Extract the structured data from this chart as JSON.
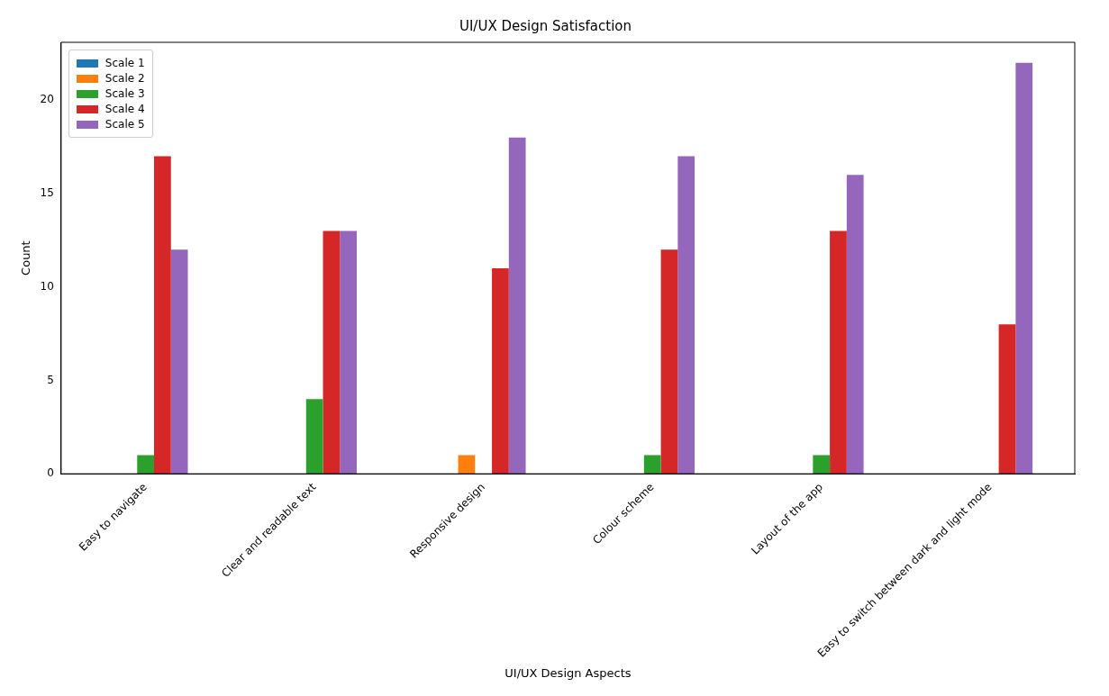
{
  "chart_data": {
    "type": "bar",
    "title": "UI/UX Design Satisfaction",
    "xlabel": "UI/UX Design Aspects",
    "ylabel": "Count",
    "categories": [
      "Easy to navigate",
      "Clear and readable text",
      "Responsive design",
      "Colour scheme",
      "Layout of the app",
      "Easy to switch between dark and light mode"
    ],
    "series": [
      {
        "name": "Scale 1",
        "color": "#1f77b4",
        "values": [
          0,
          0,
          0,
          0,
          0,
          0
        ]
      },
      {
        "name": "Scale 2",
        "color": "#ff7f0e",
        "values": [
          0,
          0,
          1,
          0,
          0,
          0
        ]
      },
      {
        "name": "Scale 3",
        "color": "#2ca02c",
        "values": [
          1,
          4,
          0,
          1,
          1,
          0
        ]
      },
      {
        "name": "Scale 4",
        "color": "#d62728",
        "values": [
          17,
          13,
          11,
          12,
          13,
          8
        ]
      },
      {
        "name": "Scale 5",
        "color": "#9467bd",
        "values": [
          12,
          13,
          18,
          17,
          16,
          22
        ]
      }
    ],
    "ylim": [
      0,
      23.1
    ],
    "yticks": [
      0,
      5,
      10,
      15,
      20
    ],
    "grid": false,
    "legend": "top left"
  }
}
